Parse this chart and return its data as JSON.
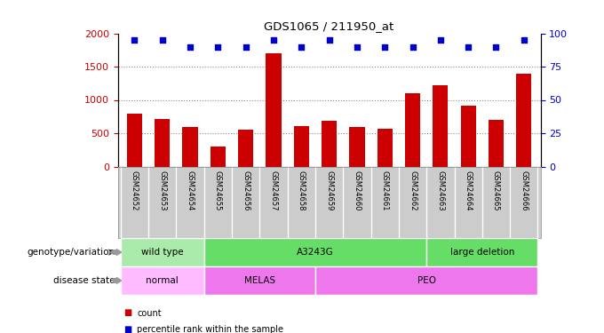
{
  "title": "GDS1065 / 211950_at",
  "samples": [
    "GSM24652",
    "GSM24653",
    "GSM24654",
    "GSM24655",
    "GSM24656",
    "GSM24657",
    "GSM24658",
    "GSM24659",
    "GSM24660",
    "GSM24661",
    "GSM24662",
    "GSM24663",
    "GSM24664",
    "GSM24665",
    "GSM24666"
  ],
  "counts": [
    800,
    720,
    600,
    300,
    560,
    1700,
    610,
    690,
    590,
    570,
    1100,
    1220,
    920,
    700,
    1400
  ],
  "percentile_ranks": [
    95,
    95,
    90,
    90,
    90,
    95,
    90,
    95,
    90,
    90,
    90,
    95,
    90,
    90,
    95
  ],
  "bar_color": "#cc0000",
  "dot_color": "#0000cc",
  "ylim_left": [
    0,
    2000
  ],
  "ylim_right": [
    0,
    100
  ],
  "yticks_left": [
    0,
    500,
    1000,
    1500,
    2000
  ],
  "yticks_right": [
    0,
    25,
    50,
    75,
    100
  ],
  "genotype_groups": [
    {
      "label": "wild type",
      "start": 0,
      "end": 2,
      "color": "#aaeaaa"
    },
    {
      "label": "A3243G",
      "start": 3,
      "end": 10,
      "color": "#66dd66"
    },
    {
      "label": "large deletion",
      "start": 11,
      "end": 14,
      "color": "#66dd66"
    }
  ],
  "disease_groups": [
    {
      "label": "normal",
      "start": 0,
      "end": 2,
      "color": "#ffbbff"
    },
    {
      "label": "MELAS",
      "start": 3,
      "end": 6,
      "color": "#ee77ee"
    },
    {
      "label": "PEO",
      "start": 7,
      "end": 14,
      "color": "#ee77ee"
    }
  ],
  "row_labels": [
    "genotype/variation",
    "disease state"
  ],
  "legend_items": [
    {
      "color": "#cc0000",
      "label": "count"
    },
    {
      "color": "#0000cc",
      "label": "percentile rank within the sample"
    }
  ],
  "background_color": "#ffffff",
  "grid_color": "#888888",
  "tick_label_color_left": "#cc0000",
  "tick_label_color_right": "#0000cc",
  "sample_bg_color": "#cccccc",
  "sample_divider_color": "#ffffff"
}
